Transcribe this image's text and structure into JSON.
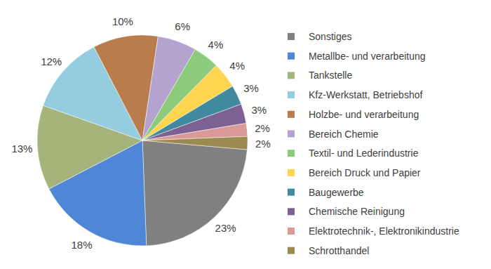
{
  "chart_data": {
    "type": "pie",
    "categories": [
      "Sonstiges",
      "Metallbe- und verarbeitung",
      "Tankstelle",
      "Kfz-Werkstatt, Betriebshof",
      "Holzbe- und verarbeitung",
      "Bereich Chemie",
      "Textil- und Lederindustrie",
      "Bereich Druck und Papier",
      "Baugewerbe",
      "Chemische Reinigung",
      "Elektrotechnik-, Elektronikindustrie",
      "Schrotthandel"
    ],
    "values": [
      23,
      18,
      13,
      12,
      10,
      6,
      4,
      4,
      3,
      3,
      2,
      2
    ],
    "value_labels": [
      "23%",
      "18%",
      "13%",
      "12%",
      "10%",
      "6%",
      "4%",
      "4%",
      "3%",
      "3%",
      "2%",
      "2%"
    ],
    "colors": [
      "#808080",
      "#4f87d6",
      "#a5b47a",
      "#94cddf",
      "#b97c4c",
      "#b5a3cf",
      "#8ccb7c",
      "#ffd54f",
      "#3f8a9c",
      "#7d6193",
      "#da9a97",
      "#9c8a50"
    ],
    "data_labels": true,
    "legend": "right"
  }
}
